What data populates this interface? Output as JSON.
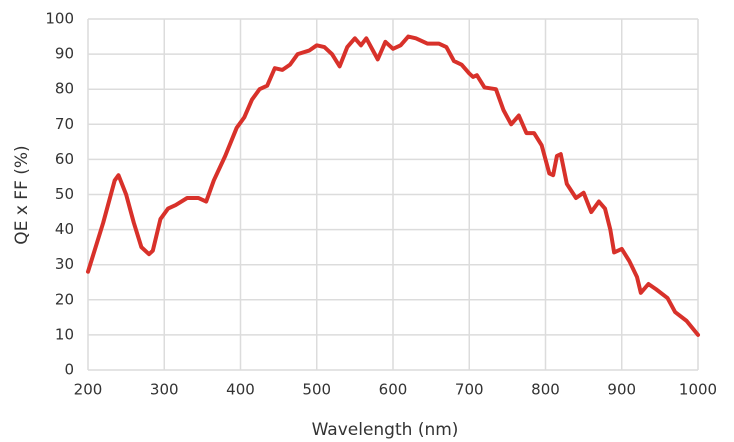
{
  "chart_data": {
    "type": "line",
    "x_label": "Wavelength (nm)",
    "y_label": "QE x FF (%)",
    "x": [
      200,
      220,
      235,
      240,
      250,
      260,
      270,
      280,
      285,
      295,
      305,
      315,
      330,
      345,
      355,
      365,
      380,
      395,
      405,
      415,
      425,
      435,
      445,
      455,
      465,
      475,
      490,
      500,
      510,
      520,
      530,
      540,
      550,
      558,
      565,
      580,
      590,
      600,
      610,
      620,
      630,
      645,
      660,
      670,
      680,
      690,
      700,
      705,
      710,
      720,
      735,
      745,
      755,
      765,
      775,
      785,
      795,
      805,
      810,
      815,
      820,
      828,
      840,
      850,
      860,
      870,
      878,
      885,
      890,
      900,
      910,
      920,
      925,
      935,
      945,
      960,
      970,
      985,
      1000
    ],
    "series": [
      {
        "name": "QE x FF",
        "color": "#d8312a",
        "values": [
          28,
          42,
          54,
          55.5,
          50,
          42,
          35,
          33,
          34,
          43,
          46,
          47,
          49,
          49,
          48,
          54,
          61,
          69,
          72,
          77,
          80,
          81,
          86,
          85.5,
          87,
          90,
          91,
          92.5,
          92,
          90,
          86.5,
          92,
          94.5,
          92.5,
          94.5,
          88.5,
          93.5,
          91.5,
          92.5,
          95,
          94.5,
          93,
          93,
          92,
          88,
          87,
          84.5,
          83.5,
          84,
          80.5,
          80,
          74,
          70,
          72.5,
          67.5,
          67.5,
          64,
          56,
          55.5,
          61,
          61.5,
          53,
          49,
          50.5,
          45,
          48,
          46,
          40,
          33.5,
          34.5,
          31,
          26.5,
          22,
          24.5,
          23,
          20.5,
          16.5,
          14,
          10
        ]
      }
    ],
    "xlim": [
      200,
      1000
    ],
    "xticks": [
      200,
      300,
      400,
      500,
      600,
      700,
      800,
      900,
      1000
    ],
    "ylim": [
      0,
      100
    ],
    "yticks": [
      0,
      10,
      20,
      30,
      40,
      50,
      60,
      70,
      80,
      90,
      100
    ],
    "grid": true
  }
}
